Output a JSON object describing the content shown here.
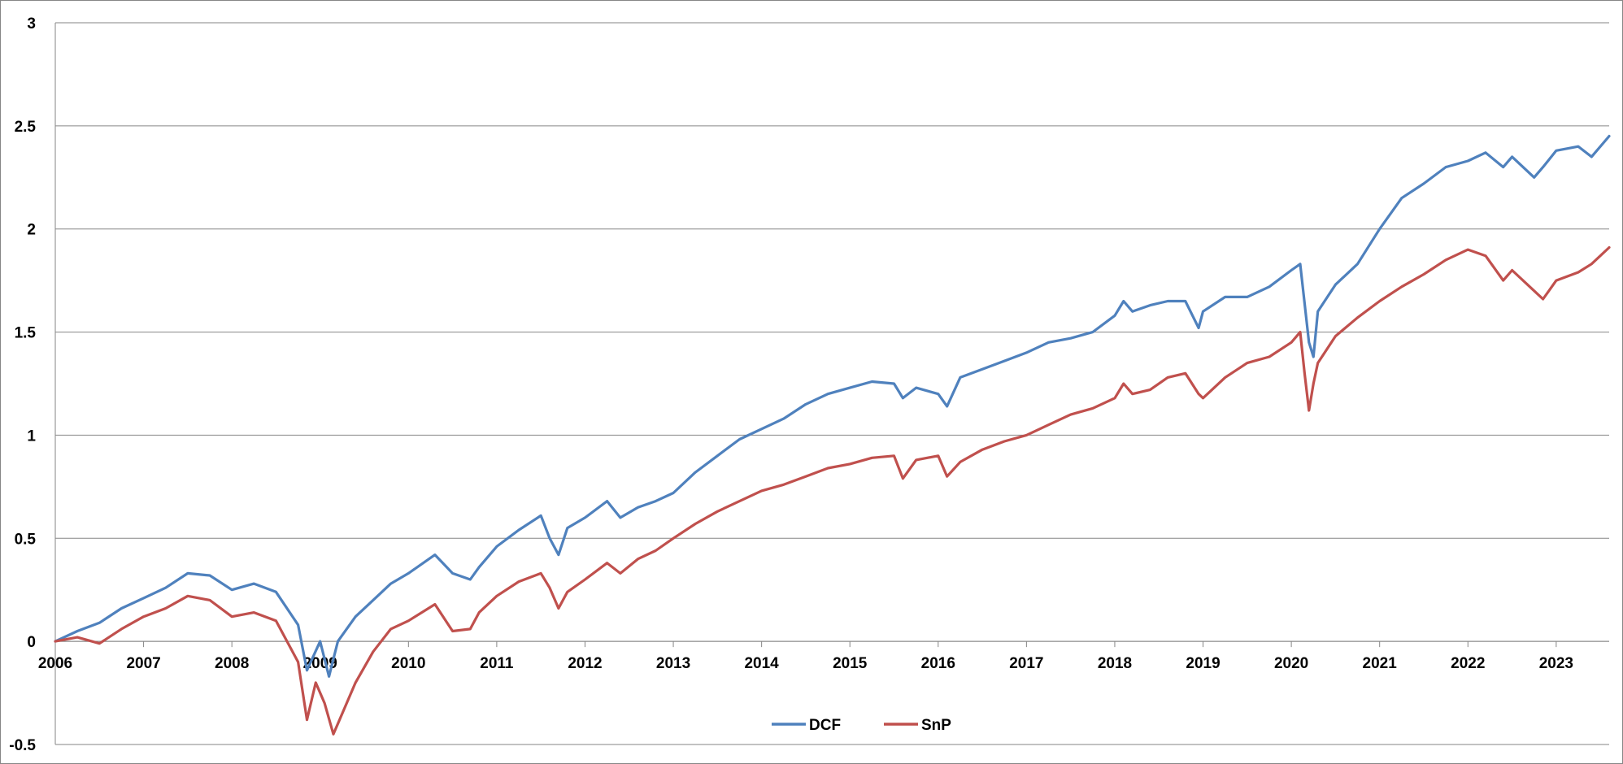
{
  "chart_data": {
    "type": "line",
    "title": "",
    "xlabel": "",
    "ylabel": "",
    "xlim": [
      2006.0,
      2023.6
    ],
    "ylim": [
      -0.5,
      3
    ],
    "y_ticks": [
      "-0.5",
      "0",
      "0.5",
      "1",
      "1.5",
      "2",
      "2.5",
      "3"
    ],
    "x_ticks": [
      "2006",
      "2007",
      "2008",
      "2009",
      "2010",
      "2011",
      "2012",
      "2013",
      "2014",
      "2015",
      "2016",
      "2017",
      "2018",
      "2019",
      "2020",
      "2021",
      "2022",
      "2023"
    ],
    "grid": "horizontal",
    "legend_position": "bottom-center",
    "series": [
      {
        "name": "DCF",
        "color": "#4F81BD",
        "x": [
          2006.0,
          2006.25,
          2006.5,
          2006.75,
          2007.0,
          2007.25,
          2007.5,
          2007.75,
          2008.0,
          2008.25,
          2008.5,
          2008.75,
          2008.85,
          2009.0,
          2009.1,
          2009.2,
          2009.4,
          2009.6,
          2009.8,
          2010.0,
          2010.3,
          2010.5,
          2010.7,
          2010.8,
          2011.0,
          2011.25,
          2011.5,
          2011.6,
          2011.7,
          2011.8,
          2012.0,
          2012.25,
          2012.4,
          2012.6,
          2012.8,
          2013.0,
          2013.25,
          2013.5,
          2013.75,
          2014.0,
          2014.25,
          2014.5,
          2014.75,
          2015.0,
          2015.25,
          2015.5,
          2015.6,
          2015.75,
          2016.0,
          2016.1,
          2016.25,
          2016.5,
          2016.75,
          2017.0,
          2017.25,
          2017.5,
          2017.75,
          2018.0,
          2018.1,
          2018.2,
          2018.4,
          2018.6,
          2018.8,
          2018.95,
          2019.0,
          2019.25,
          2019.5,
          2019.75,
          2020.0,
          2020.1,
          2020.2,
          2020.25,
          2020.3,
          2020.5,
          2020.75,
          2021.0,
          2021.25,
          2021.5,
          2021.75,
          2022.0,
          2022.2,
          2022.4,
          2022.5,
          2022.75,
          2022.85,
          2023.0,
          2023.25,
          2023.4,
          2023.6
        ],
        "values": [
          0.0,
          0.05,
          0.09,
          0.16,
          0.21,
          0.26,
          0.33,
          0.32,
          0.25,
          0.28,
          0.24,
          0.08,
          -0.14,
          0.0,
          -0.17,
          0.0,
          0.12,
          0.2,
          0.28,
          0.33,
          0.42,
          0.33,
          0.3,
          0.36,
          0.46,
          0.54,
          0.61,
          0.5,
          0.42,
          0.55,
          0.6,
          0.68,
          0.6,
          0.65,
          0.68,
          0.72,
          0.82,
          0.9,
          0.98,
          1.03,
          1.08,
          1.15,
          1.2,
          1.23,
          1.26,
          1.25,
          1.18,
          1.23,
          1.2,
          1.14,
          1.28,
          1.32,
          1.36,
          1.4,
          1.45,
          1.47,
          1.5,
          1.58,
          1.65,
          1.6,
          1.63,
          1.65,
          1.65,
          1.52,
          1.6,
          1.67,
          1.67,
          1.72,
          1.8,
          1.83,
          1.45,
          1.38,
          1.6,
          1.73,
          1.83,
          2.0,
          2.15,
          2.22,
          2.3,
          2.33,
          2.37,
          2.3,
          2.35,
          2.25,
          2.3,
          2.38,
          2.4,
          2.35,
          2.45
        ]
      },
      {
        "name": "SnP",
        "color": "#C0504D",
        "x": [
          2006.0,
          2006.25,
          2006.5,
          2006.75,
          2007.0,
          2007.25,
          2007.5,
          2007.75,
          2008.0,
          2008.25,
          2008.5,
          2008.75,
          2008.85,
          2008.95,
          2009.05,
          2009.15,
          2009.4,
          2009.6,
          2009.8,
          2010.0,
          2010.3,
          2010.5,
          2010.7,
          2010.8,
          2011.0,
          2011.25,
          2011.5,
          2011.6,
          2011.7,
          2011.8,
          2012.0,
          2012.25,
          2012.4,
          2012.6,
          2012.8,
          2013.0,
          2013.25,
          2013.5,
          2013.75,
          2014.0,
          2014.25,
          2014.5,
          2014.75,
          2015.0,
          2015.25,
          2015.5,
          2015.6,
          2015.75,
          2016.0,
          2016.1,
          2016.25,
          2016.5,
          2016.75,
          2017.0,
          2017.25,
          2017.5,
          2017.75,
          2018.0,
          2018.1,
          2018.2,
          2018.4,
          2018.6,
          2018.8,
          2018.95,
          2019.0,
          2019.25,
          2019.5,
          2019.75,
          2020.0,
          2020.1,
          2020.15,
          2020.2,
          2020.25,
          2020.3,
          2020.5,
          2020.75,
          2021.0,
          2021.25,
          2021.5,
          2021.75,
          2022.0,
          2022.2,
          2022.4,
          2022.5,
          2022.75,
          2022.85,
          2023.0,
          2023.25,
          2023.4,
          2023.6
        ],
        "values": [
          0.0,
          0.02,
          -0.01,
          0.06,
          0.12,
          0.16,
          0.22,
          0.2,
          0.12,
          0.14,
          0.1,
          -0.1,
          -0.38,
          -0.2,
          -0.3,
          -0.45,
          -0.2,
          -0.05,
          0.06,
          0.1,
          0.18,
          0.05,
          0.06,
          0.14,
          0.22,
          0.29,
          0.33,
          0.26,
          0.16,
          0.24,
          0.3,
          0.38,
          0.33,
          0.4,
          0.44,
          0.5,
          0.57,
          0.63,
          0.68,
          0.73,
          0.76,
          0.8,
          0.84,
          0.86,
          0.89,
          0.9,
          0.79,
          0.88,
          0.9,
          0.8,
          0.87,
          0.93,
          0.97,
          1.0,
          1.05,
          1.1,
          1.13,
          1.18,
          1.25,
          1.2,
          1.22,
          1.28,
          1.3,
          1.2,
          1.18,
          1.28,
          1.35,
          1.38,
          1.45,
          1.5,
          1.3,
          1.12,
          1.25,
          1.35,
          1.48,
          1.57,
          1.65,
          1.72,
          1.78,
          1.85,
          1.9,
          1.87,
          1.75,
          1.8,
          1.7,
          1.66,
          1.75,
          1.79,
          1.83,
          1.91
        ]
      }
    ]
  }
}
